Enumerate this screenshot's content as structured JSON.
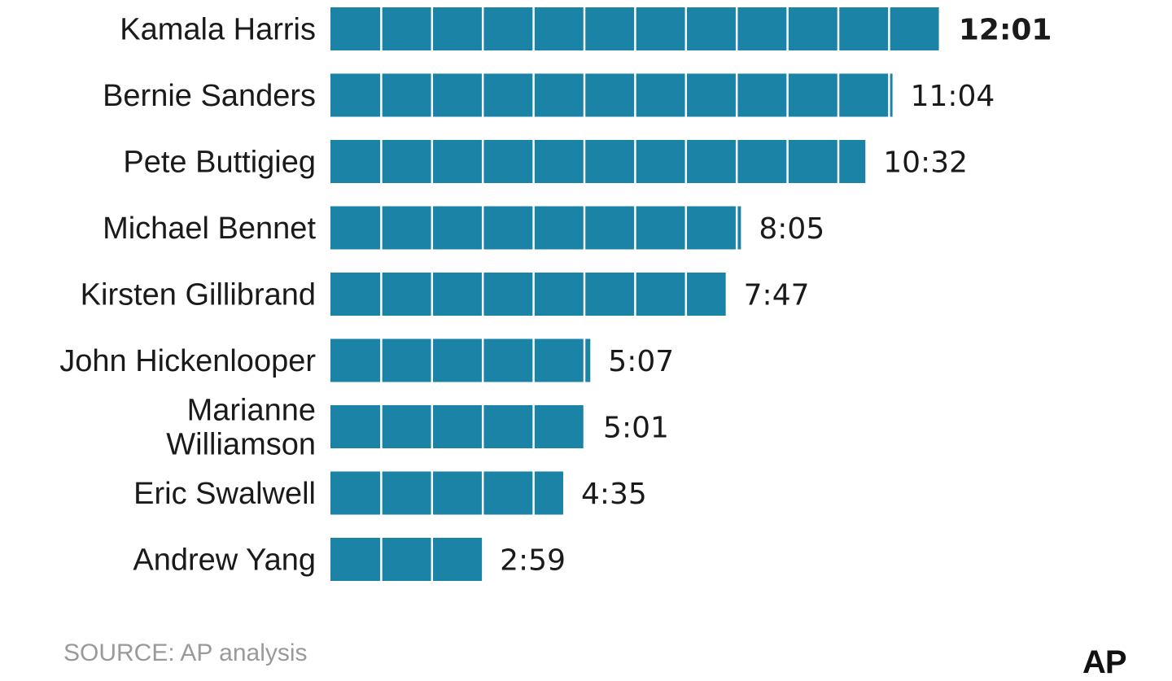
{
  "chart_data": {
    "type": "bar",
    "orientation": "horizontal",
    "bar_color": "#1a83a6",
    "segment_divider_color": "#ffffff",
    "segment_unit_minutes": 1,
    "categories": [
      "Kamala Harris",
      "Bernie Sanders",
      "Pete Buttigieg",
      "Michael Bennet",
      "Kirsten Gillibrand",
      "John Hickenlooper",
      "Marianne Williamson",
      "Eric Swalwell",
      "Andrew Yang"
    ],
    "category_lines": [
      [
        "Kamala Harris"
      ],
      [
        "Bernie Sanders"
      ],
      [
        "Pete Buttigieg"
      ],
      [
        "Michael Bennet"
      ],
      [
        "Kirsten Gillibrand"
      ],
      [
        "John Hickenlooper"
      ],
      [
        "Marianne",
        "Williamson"
      ],
      [
        "Eric Swalwell"
      ],
      [
        "Andrew Yang"
      ]
    ],
    "value_labels": [
      "12:01",
      "11:04",
      "10:32",
      "8:05",
      "7:47",
      "5:07",
      "5:01",
      "4:35",
      "2:59"
    ],
    "values_minutes": [
      12.017,
      11.067,
      10.533,
      8.083,
      7.783,
      5.117,
      5.017,
      4.583,
      2.983
    ],
    "highlight_index": 0
  },
  "footer": {
    "source": "SOURCE: AP analysis",
    "logo": "AP"
  }
}
